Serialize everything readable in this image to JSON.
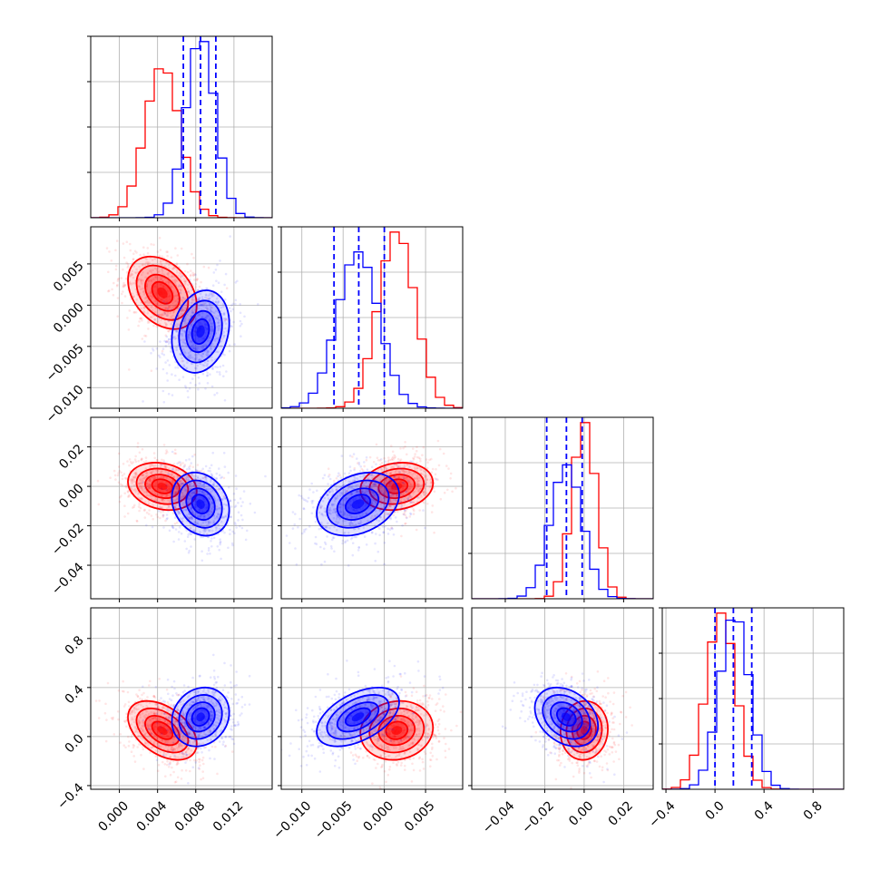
{
  "colors": {
    "series_a": "#ff0000",
    "series_b": "#0000ff",
    "frame": "#000000",
    "grid": "#b0b0b0"
  },
  "chart_data": {
    "type": "corner",
    "params": [
      {
        "range": [
          -0.003,
          0.016
        ],
        "ticks": [
          0.0,
          0.004,
          0.008,
          0.012
        ],
        "tick_labels": [
          "0.000",
          "0.004",
          "0.008",
          "0.012"
        ]
      },
      {
        "range": [
          -0.0125,
          0.0095
        ],
        "ticks": [
          -0.01,
          -0.005,
          0.0,
          0.005
        ],
        "tick_labels": [
          "−0.010",
          "−0.005",
          "0.000",
          "0.005"
        ]
      },
      {
        "range": [
          -0.057,
          0.035
        ],
        "ticks": [
          -0.04,
          -0.02,
          0.0,
          0.02
        ],
        "tick_labels": [
          "−0.04",
          "−0.02",
          "0.00",
          "0.02"
        ]
      },
      {
        "range": [
          -0.43,
          1.05
        ],
        "ticks": [
          -0.4,
          0.0,
          0.4,
          0.8
        ],
        "tick_labels": [
          "−0.4",
          "0.0",
          "0.4",
          "0.8"
        ]
      }
    ],
    "series": [
      {
        "color": "#ff0000",
        "mean": [
          0.0045,
          0.0015,
          0.0,
          0.05
        ],
        "sd": [
          0.0018,
          0.0022,
          0.006,
          0.12
        ],
        "corr": [
          [
            1,
            -0.35,
            -0.2,
            -0.45
          ],
          [
            -0.35,
            1,
            0.15,
            0.1
          ],
          [
            -0.2,
            0.15,
            1,
            0.05
          ],
          [
            -0.45,
            0.1,
            0.05,
            1
          ]
        ]
      },
      {
        "color": "#0000ff",
        "mean": [
          0.0085,
          -0.0032,
          -0.009,
          0.16
        ],
        "sd": [
          0.0015,
          0.0025,
          0.008,
          0.12
        ],
        "corr": [
          [
            1,
            0.2,
            -0.2,
            0.15
          ],
          [
            0.2,
            1,
            0.3,
            0.5
          ],
          [
            -0.2,
            0.3,
            1,
            -0.3
          ],
          [
            0.15,
            0.5,
            -0.3,
            1
          ]
        ],
        "quantiles": [
          [
            0.0067,
            0.0085,
            0.0101
          ],
          [
            -0.0061,
            -0.0031,
            0.0
          ],
          [
            -0.019,
            -0.009,
            -0.001
          ],
          [
            0.0,
            0.15,
            0.3
          ]
        ]
      }
    ],
    "hist_bins": 20,
    "contour_sigmas": [
      0.6,
      1.0,
      1.5,
      2.0
    ],
    "grid": true,
    "legend": "none"
  }
}
